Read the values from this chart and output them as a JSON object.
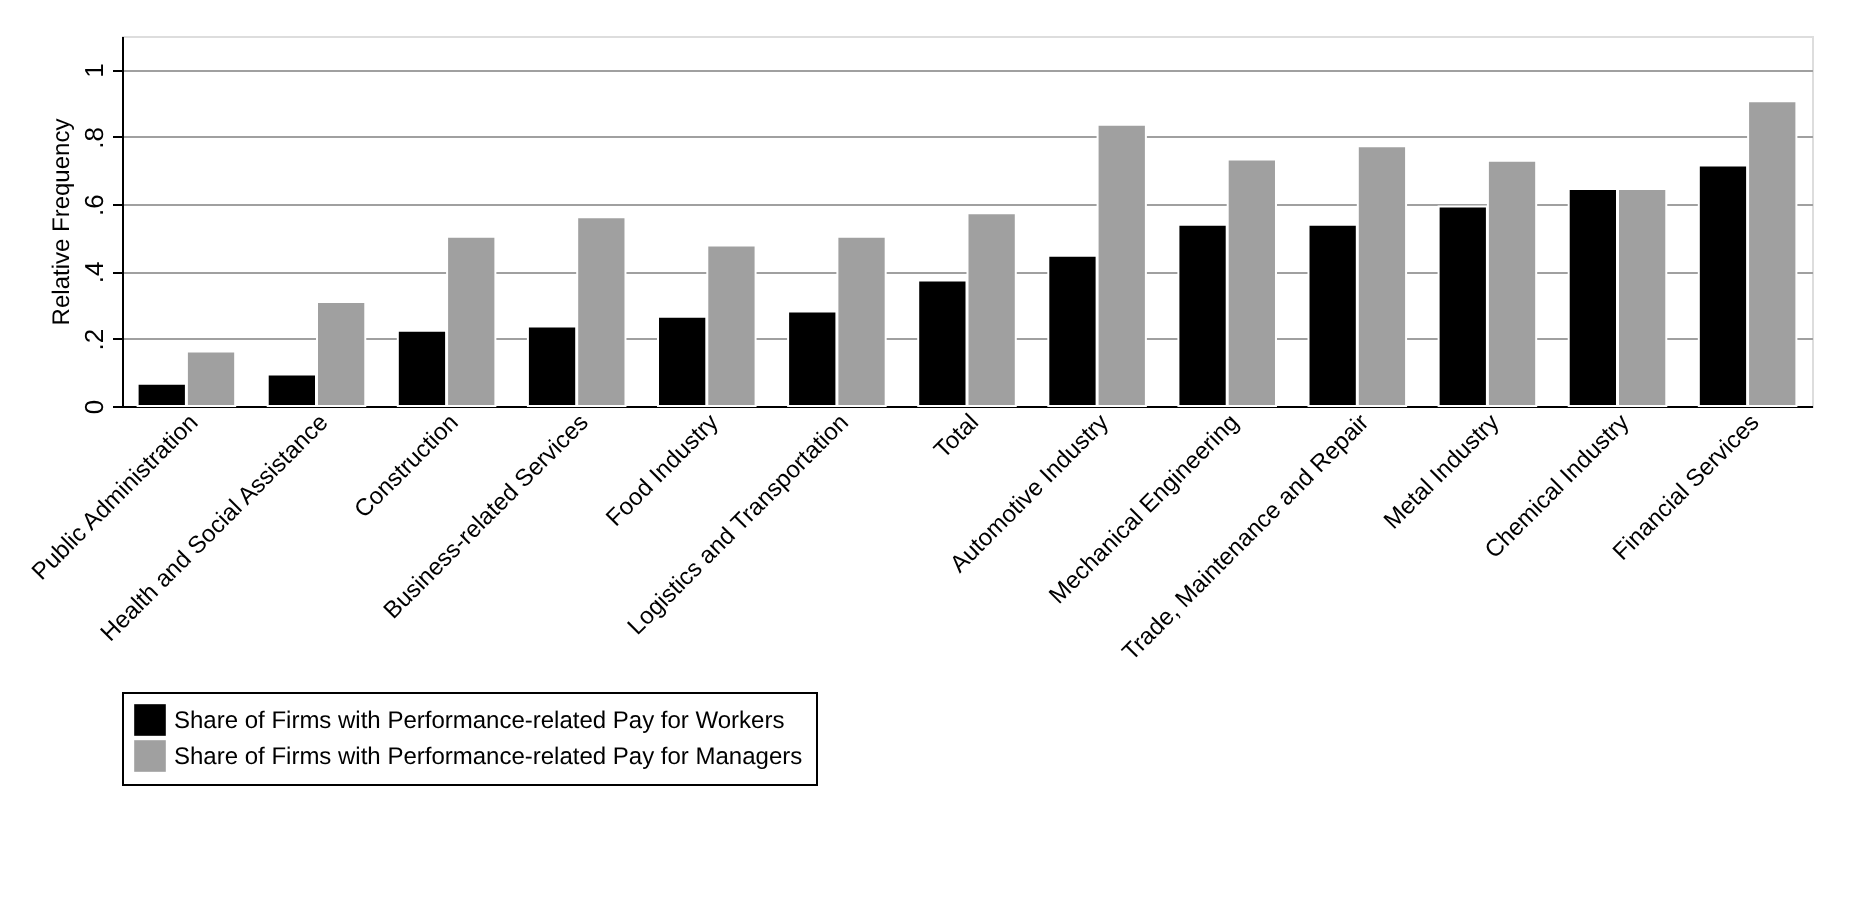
{
  "chart_data": {
    "type": "bar",
    "ylabel": "Relative Frequency",
    "categories": [
      "Public Administration",
      "Health and Social Assistance",
      "Construction",
      "Business-related Services",
      "Food Industry",
      "Logistics and Transportation",
      "Total",
      "Automotive Industry",
      "Mechanical Engineering",
      "Trade, Maintenance and Repair",
      "Metal Industry",
      "Chemical Industry",
      "Financial Services"
    ],
    "series": [
      {
        "name": "Share of Firms with Performance-related Pay for Workers",
        "color": "#000000",
        "values": [
          0.066,
          0.094,
          0.224,
          0.236,
          0.265,
          0.281,
          0.373,
          0.447,
          0.539,
          0.539,
          0.593,
          0.645,
          0.715
        ]
      },
      {
        "name": "Share of Firms with Performance-related Pay for Managers",
        "color": "#a0a0a0",
        "values": [
          0.162,
          0.309,
          0.503,
          0.561,
          0.477,
          0.503,
          0.573,
          0.836,
          0.733,
          0.772,
          0.729,
          0.645,
          0.906
        ]
      }
    ],
    "ylim": [
      0,
      1.1
    ],
    "yticks": [
      0,
      {
        "value": 0.2,
        "label": ".2"
      },
      {
        "value": 0.4,
        "label": ".4"
      },
      {
        "value": 0.6,
        "label": ".6"
      },
      {
        "value": 0.8,
        "label": ".8"
      },
      1
    ],
    "grid": "y",
    "legend": "bottom"
  }
}
